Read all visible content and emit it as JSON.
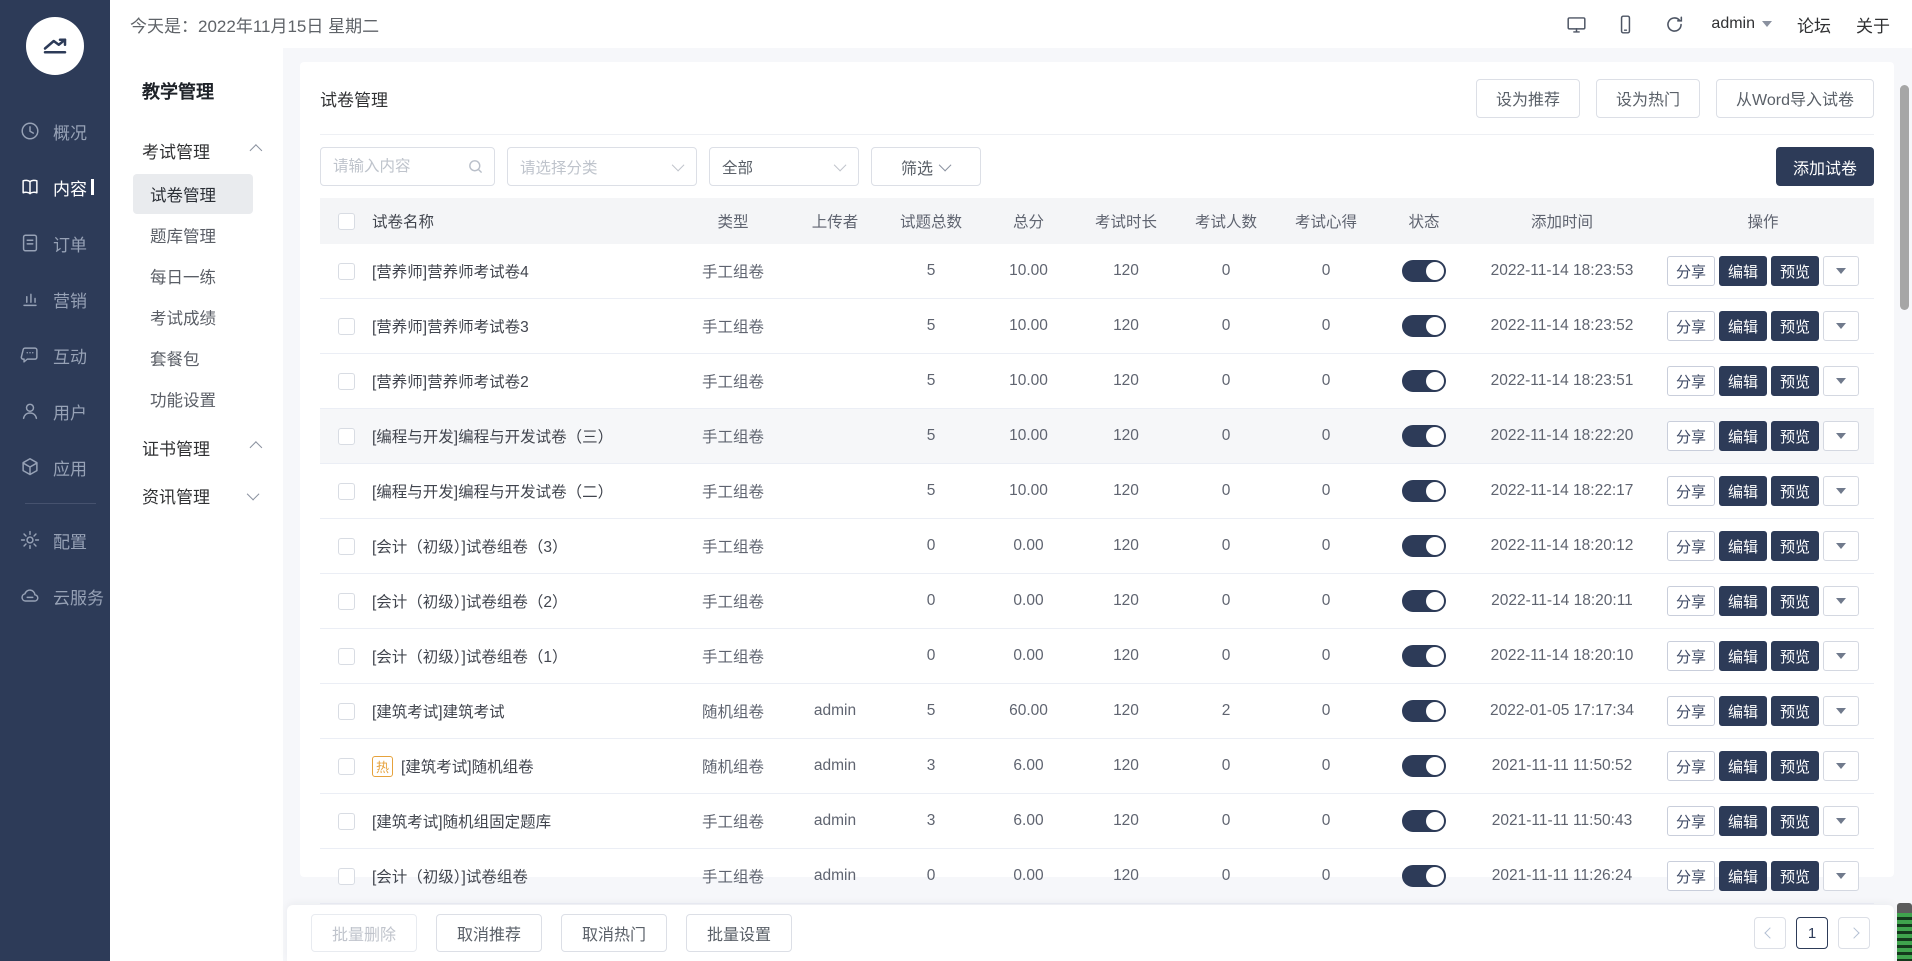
{
  "brand": {
    "accent": "#2d3b58",
    "hot_color": "#e6a23c"
  },
  "topbar": {
    "date": "今天是：2022年11月15日 星期二",
    "username": "admin",
    "forum_link": "论坛",
    "about_link": "关于"
  },
  "left_nav": {
    "primary_items": [
      {
        "key": "overview",
        "icon": "clock-icon",
        "label": "概况",
        "active": false
      },
      {
        "key": "content",
        "icon": "book-icon",
        "label": "内容",
        "active": true
      },
      {
        "key": "orders",
        "icon": "order-icon",
        "label": "订单",
        "active": false
      },
      {
        "key": "marketing",
        "icon": "chart-icon",
        "label": "营销",
        "active": false
      },
      {
        "key": "interaction",
        "icon": "chat-icon",
        "label": "互动",
        "active": false
      },
      {
        "key": "users",
        "icon": "user-icon",
        "label": "用户",
        "active": false
      },
      {
        "key": "apps",
        "icon": "apps-icon",
        "label": "应用",
        "active": false
      }
    ],
    "secondary_items": [
      {
        "key": "settings",
        "icon": "gear-icon",
        "label": "配置",
        "active": false
      },
      {
        "key": "cloud",
        "icon": "cloud-icon",
        "label": "云服务",
        "active": false
      }
    ]
  },
  "secondary_nav": {
    "title": "教学管理",
    "groups": [
      {
        "key": "exam-management",
        "label": "考试管理",
        "expanded": true,
        "children": [
          {
            "key": "paper-management",
            "label": "试卷管理",
            "selected": true
          },
          {
            "key": "question-bank",
            "label": "题库管理",
            "selected": false
          },
          {
            "key": "daily-practice",
            "label": "每日一练",
            "selected": false
          },
          {
            "key": "exam-results",
            "label": "考试成绩",
            "selected": false
          },
          {
            "key": "package",
            "label": "套餐包",
            "selected": false
          },
          {
            "key": "feature-settings",
            "label": "功能设置",
            "selected": false
          }
        ]
      },
      {
        "key": "certificate-management",
        "label": "证书管理",
        "expanded": true,
        "children": []
      },
      {
        "key": "news-management",
        "label": "资讯管理",
        "expanded": false,
        "children": []
      }
    ]
  },
  "page": {
    "title": "试卷管理",
    "header_buttons": [
      {
        "key": "set-recommended",
        "label": "设为推荐"
      },
      {
        "key": "set-hot",
        "label": "设为热门"
      },
      {
        "key": "import-word",
        "label": "从Word导入试卷"
      }
    ],
    "search_placeholder": "请输入内容",
    "category_placeholder": "请选择分类",
    "status_filter_value": "全部",
    "filter_button_label": "筛选",
    "add_button_label": "添加试卷"
  },
  "table": {
    "columns": [
      "试卷名称",
      "类型",
      "上传者",
      "试题总数",
      "总分",
      "考试时长",
      "考试人数",
      "考试心得",
      "状态",
      "添加时间",
      "操作"
    ],
    "action_labels": {
      "share": "分享",
      "edit": "编辑",
      "preview": "预览"
    },
    "hot_badge": "热",
    "rows": [
      {
        "name": "[营养师]营养师考试卷4",
        "hot": false,
        "type": "手工组卷",
        "uploader": "",
        "questions": "5",
        "score": "10.00",
        "duration": "120",
        "takers": "0",
        "notes": "0",
        "status_on": true,
        "added": "2022-11-14 18:23:53",
        "hover": false
      },
      {
        "name": "[营养师]营养师考试卷3",
        "hot": false,
        "type": "手工组卷",
        "uploader": "",
        "questions": "5",
        "score": "10.00",
        "duration": "120",
        "takers": "0",
        "notes": "0",
        "status_on": true,
        "added": "2022-11-14 18:23:52",
        "hover": false
      },
      {
        "name": "[营养师]营养师考试卷2",
        "hot": false,
        "type": "手工组卷",
        "uploader": "",
        "questions": "5",
        "score": "10.00",
        "duration": "120",
        "takers": "0",
        "notes": "0",
        "status_on": true,
        "added": "2022-11-14 18:23:51",
        "hover": false
      },
      {
        "name": "[编程与开发]编程与开发试卷（三）",
        "hot": false,
        "type": "手工组卷",
        "uploader": "",
        "questions": "5",
        "score": "10.00",
        "duration": "120",
        "takers": "0",
        "notes": "0",
        "status_on": true,
        "added": "2022-11-14 18:22:20",
        "hover": true
      },
      {
        "name": "[编程与开发]编程与开发试卷（二）",
        "hot": false,
        "type": "手工组卷",
        "uploader": "",
        "questions": "5",
        "score": "10.00",
        "duration": "120",
        "takers": "0",
        "notes": "0",
        "status_on": true,
        "added": "2022-11-14 18:22:17",
        "hover": false
      },
      {
        "name": "[会计（初级）]试卷组卷（3）",
        "hot": false,
        "type": "手工组卷",
        "uploader": "",
        "questions": "0",
        "score": "0.00",
        "duration": "120",
        "takers": "0",
        "notes": "0",
        "status_on": true,
        "added": "2022-11-14 18:20:12",
        "hover": false
      },
      {
        "name": "[会计（初级）]试卷组卷（2）",
        "hot": false,
        "type": "手工组卷",
        "uploader": "",
        "questions": "0",
        "score": "0.00",
        "duration": "120",
        "takers": "0",
        "notes": "0",
        "status_on": true,
        "added": "2022-11-14 18:20:11",
        "hover": false
      },
      {
        "name": "[会计（初级）]试卷组卷（1）",
        "hot": false,
        "type": "手工组卷",
        "uploader": "",
        "questions": "0",
        "score": "0.00",
        "duration": "120",
        "takers": "0",
        "notes": "0",
        "status_on": true,
        "added": "2022-11-14 18:20:10",
        "hover": false
      },
      {
        "name": "[建筑考试]建筑考试",
        "hot": false,
        "type": "随机组卷",
        "uploader": "admin",
        "questions": "5",
        "score": "60.00",
        "duration": "120",
        "takers": "2",
        "notes": "0",
        "status_on": true,
        "added": "2022-01-05 17:17:34",
        "hover": false
      },
      {
        "name": "[建筑考试]随机组卷",
        "hot": true,
        "type": "随机组卷",
        "uploader": "admin",
        "questions": "3",
        "score": "6.00",
        "duration": "120",
        "takers": "0",
        "notes": "0",
        "status_on": true,
        "added": "2021-11-11 11:50:52",
        "hover": false
      },
      {
        "name": "[建筑考试]随机组固定题库",
        "hot": false,
        "type": "手工组卷",
        "uploader": "admin",
        "questions": "3",
        "score": "6.00",
        "duration": "120",
        "takers": "0",
        "notes": "0",
        "status_on": true,
        "added": "2021-11-11 11:50:43",
        "hover": false
      },
      {
        "name": "[会计（初级）]试卷组卷",
        "hot": false,
        "type": "手工组卷",
        "uploader": "admin",
        "questions": "0",
        "score": "0.00",
        "duration": "120",
        "takers": "0",
        "notes": "0",
        "status_on": true,
        "added": "2021-11-11 11:26:24",
        "hover": false
      }
    ]
  },
  "footer": {
    "bulk_buttons": [
      {
        "key": "bulk-delete",
        "label": "批量删除",
        "disabled": true
      },
      {
        "key": "cancel-recommend",
        "label": "取消推荐",
        "disabled": false
      },
      {
        "key": "cancel-hot",
        "label": "取消热门",
        "disabled": false
      },
      {
        "key": "bulk-settings",
        "label": "批量设置",
        "disabled": false
      }
    ],
    "pagination": {
      "current_page": "1"
    }
  }
}
